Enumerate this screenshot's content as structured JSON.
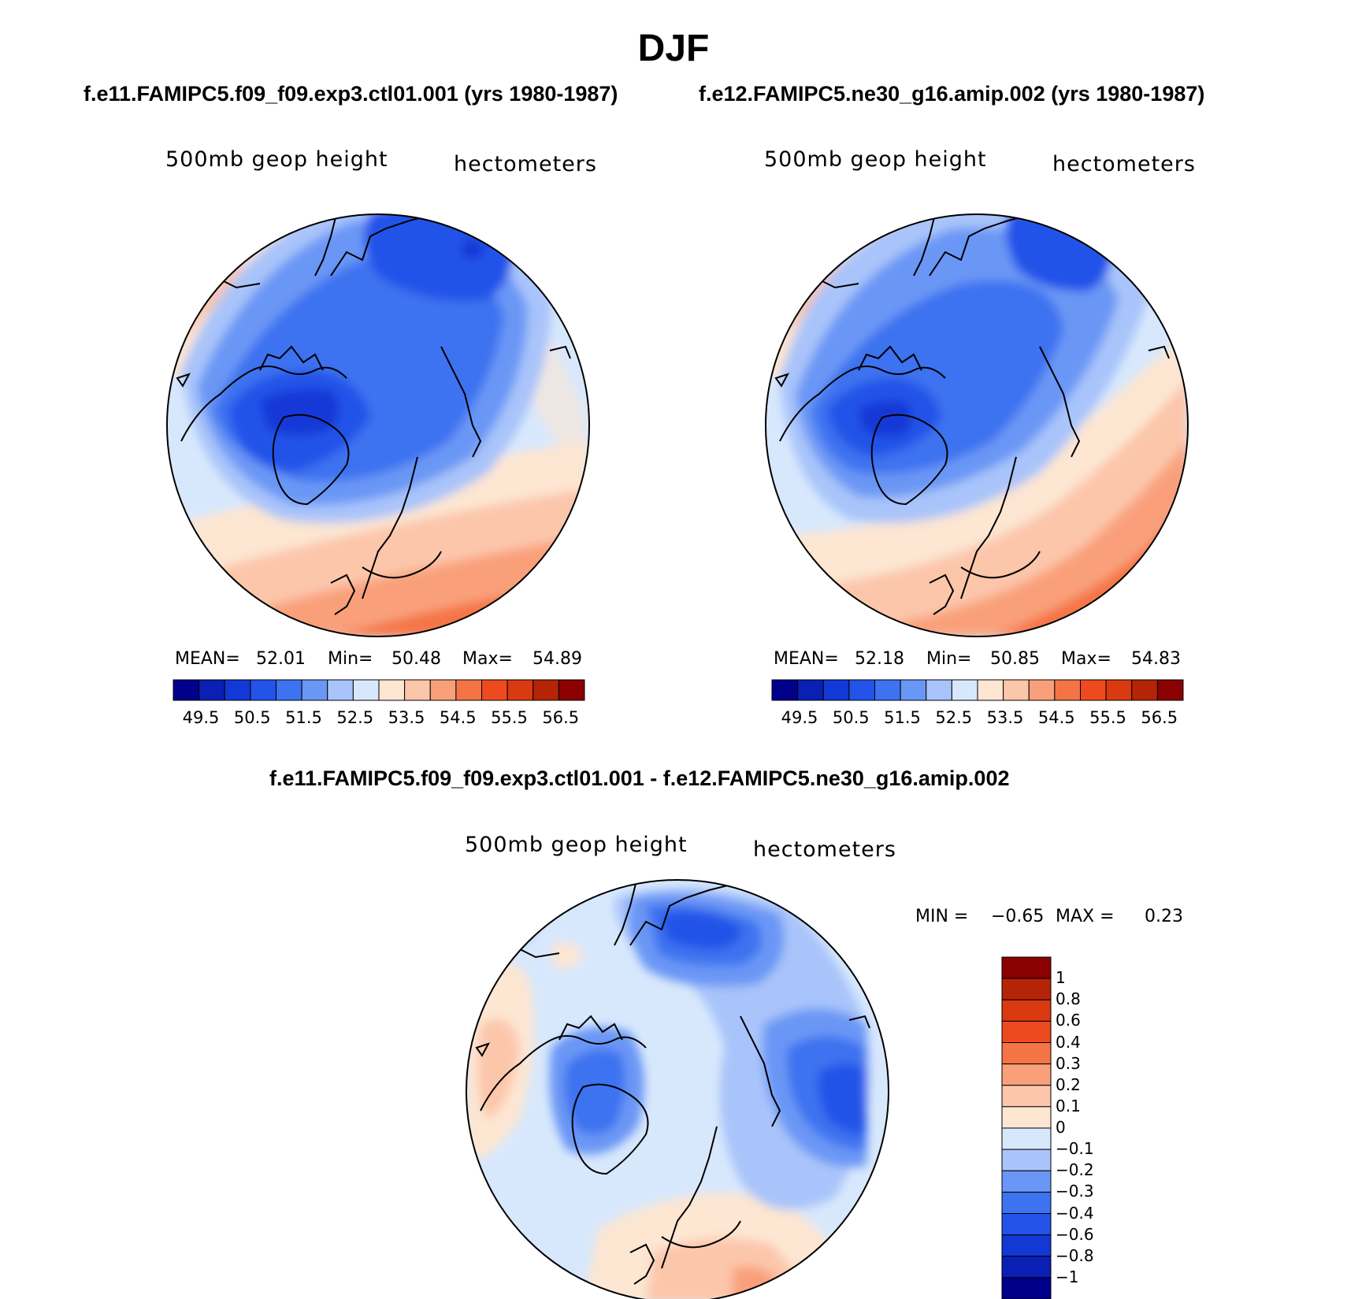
{
  "title": "DJF",
  "panels": [
    {
      "case": "f.e11.FAMIPC5.f09_f09.exp3.ctl01.001 (yrs 1980-1987)",
      "variable": "500mb geop height",
      "units": "hectometers",
      "stats": {
        "mean_label": "MEAN=",
        "mean": "52.01",
        "min_label": "Min=",
        "min": "50.48",
        "max_label": "Max=",
        "max": "54.89"
      }
    },
    {
      "case": "f.e12.FAMIPC5.ne30_g16.amip.002 (yrs 1980-1987)",
      "variable": "500mb geop height",
      "units": "hectometers",
      "stats": {
        "mean_label": "MEAN=",
        "mean": "52.18",
        "min_label": "Min=",
        "min": "50.85",
        "max_label": "Max=",
        "max": "54.83"
      }
    }
  ],
  "difference": {
    "title": "f.e11.FAMIPC5.f09_f09.exp3.ctl01.001 - f.e12.FAMIPC5.ne30_g16.amip.002",
    "variable": "500mb geop height",
    "units": "hectometers",
    "stats": {
      "min_label": "MIN =",
      "min": "−0.65",
      "max_label": "MAX =",
      "max": "0.23"
    }
  },
  "colorbar_main": {
    "ticks": [
      "49.5",
      "50.5",
      "51.5",
      "52.5",
      "53.5",
      "54.5",
      "55.5",
      "56.5"
    ],
    "colors": [
      "#00008b",
      "#0a1fb4",
      "#1238d6",
      "#2353e8",
      "#3d72f0",
      "#6a97f5",
      "#a9c4fa",
      "#d8e8fc",
      "#fde6d2",
      "#fcc6ab",
      "#f9a07a",
      "#f57446",
      "#ee4a1f",
      "#d93a10",
      "#b62408",
      "#8b0000"
    ]
  },
  "colorbar_diff": {
    "labels": [
      "1",
      "0.8",
      "0.6",
      "0.4",
      "0.3",
      "0.2",
      "0.1",
      "0",
      "−0.1",
      "−0.2",
      "−0.3",
      "−0.4",
      "−0.6",
      "−0.8",
      "−1"
    ],
    "colors": [
      "#8b0000",
      "#b62408",
      "#d93a10",
      "#ee4a1f",
      "#f57446",
      "#f9a07a",
      "#fcc6ab",
      "#fde6d2",
      "#d8e8fc",
      "#a9c4fa",
      "#6a97f5",
      "#3d72f0",
      "#2353e8",
      "#1238d6",
      "#0a1fb4",
      "#00008b"
    ]
  }
}
